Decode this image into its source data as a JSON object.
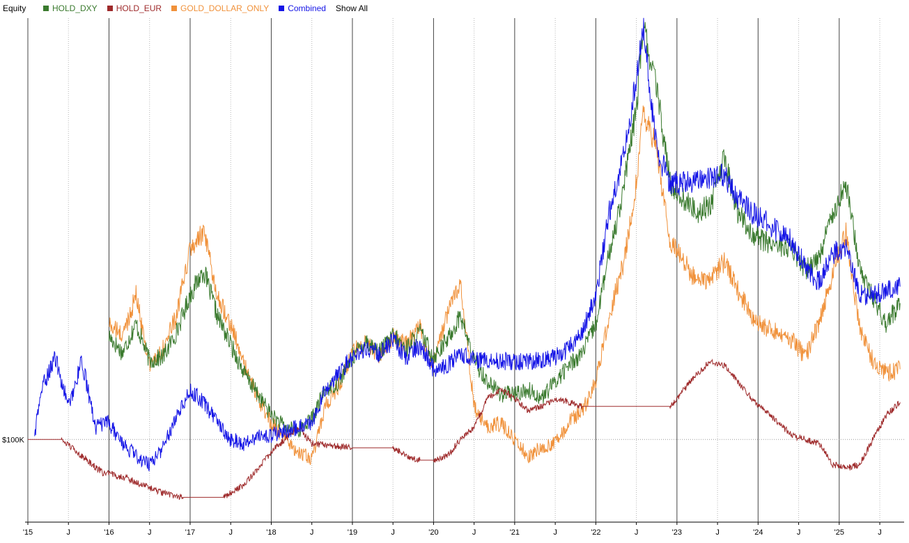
{
  "header": {
    "title": "Equity",
    "show_all": "Show All"
  },
  "chart_data": {
    "type": "line",
    "ylabel_tick": "$100K",
    "y_reference": 100000,
    "grid": "vertical lines at each year start, dotted lines at mid-year, dotted horizontal reference at $100K",
    "legend_position": "top-left",
    "x_tick_labels": [
      "'15",
      "J",
      "'16",
      "J",
      "'17",
      "J",
      "'18",
      "J",
      "'19",
      "J",
      "'20",
      "J",
      "'21",
      "J",
      "'22",
      "J",
      "'23",
      "J",
      "'24",
      "J",
      "'25",
      "J"
    ],
    "x_tick_dates": [
      "2015-01",
      "2015-07",
      "2016-01",
      "2016-07",
      "2017-01",
      "2017-07",
      "2018-01",
      "2018-07",
      "2019-01",
      "2019-07",
      "2020-01",
      "2020-07",
      "2021-01",
      "2021-07",
      "2022-01",
      "2022-07",
      "2023-01",
      "2023-07",
      "2024-01",
      "2024-07",
      "2025-01",
      "2025-07"
    ],
    "x_range": [
      "2015-01",
      "2025-10"
    ],
    "series": [
      {
        "name": "HOLD_DXY",
        "color": "#3a7a2e",
        "start": "2016-01",
        "x": [
          "2016-01",
          "2016-03",
          "2016-05",
          "2016-07",
          "2016-09",
          "2016-11",
          "2017-01",
          "2017-03",
          "2017-05",
          "2017-07",
          "2017-09",
          "2017-11",
          "2018-01",
          "2018-03",
          "2018-05",
          "2018-07",
          "2018-09",
          "2018-11",
          "2019-01",
          "2019-03",
          "2019-05",
          "2019-07",
          "2019-09",
          "2019-11",
          "2020-01",
          "2020-03",
          "2020-05",
          "2020-07",
          "2020-09",
          "2020-11",
          "2021-01",
          "2021-03",
          "2021-05",
          "2021-07",
          "2021-09",
          "2021-11",
          "2022-01",
          "2022-03",
          "2022-05",
          "2022-07",
          "2022-08",
          "2022-10",
          "2022-12",
          "2023-02",
          "2023-04",
          "2023-06",
          "2023-08",
          "2023-10",
          "2023-12",
          "2024-02",
          "2024-04",
          "2024-06",
          "2024-08",
          "2024-10",
          "2024-12",
          "2025-02",
          "2025-04",
          "2025-06",
          "2025-08",
          "2025-10"
        ],
        "y": [
          125,
          121,
          128,
          119,
          120,
          126,
          135,
          141,
          130,
          123,
          116,
          111,
          106,
          103,
          102,
          105,
          112,
          114,
          120,
          124,
          121,
          125,
          122,
          126,
          120,
          124,
          130,
          119,
          114,
          111,
          111,
          112,
          110,
          114,
          118,
          121,
          128,
          145,
          160,
          180,
          200,
          185,
          162,
          158,
          155,
          157,
          168,
          155,
          150,
          148,
          147,
          146,
          141,
          144,
          155,
          162,
          142,
          134,
          128,
          133
        ]
      },
      {
        "name": "HOLD_EUR",
        "color": "#9e2a2b",
        "start": "2015-01",
        "x": [
          "2015-01",
          "2015-06",
          "2015-09",
          "2015-12",
          "2016-03",
          "2016-06",
          "2016-09",
          "2016-12",
          "2017-03",
          "2017-06",
          "2017-09",
          "2017-11",
          "2018-01",
          "2018-03",
          "2018-05",
          "2018-07",
          "2019-01",
          "2019-07",
          "2019-09",
          "2019-11",
          "2020-01",
          "2020-03",
          "2020-05",
          "2020-07",
          "2020-09",
          "2020-11",
          "2021-01",
          "2021-03",
          "2021-05",
          "2021-07",
          "2021-09",
          "2021-11",
          "2022-01",
          "2022-06",
          "2022-12",
          "2023-02",
          "2023-04",
          "2023-06",
          "2023-08",
          "2023-10",
          "2023-12",
          "2024-02",
          "2024-04",
          "2024-06",
          "2024-08",
          "2024-10",
          "2024-12",
          "2025-02",
          "2025-04",
          "2025-06",
          "2025-08",
          "2025-10"
        ],
        "y": [
          100,
          100,
          96,
          92,
          91,
          89,
          87,
          86,
          86,
          86,
          89,
          93,
          97,
          100,
          103,
          99,
          98,
          98,
          96,
          95,
          95,
          96,
          100,
          103,
          110,
          112,
          110,
          107,
          108,
          110,
          109,
          108,
          108,
          108,
          108,
          112,
          116,
          119,
          118,
          114,
          110,
          107,
          104,
          101,
          100,
          99,
          94,
          93,
          94,
          100,
          106,
          109
        ]
      },
      {
        "name": "GOLD_DOLLAR_ONLY",
        "color": "#f0913a",
        "start": "2016-01",
        "x": [
          "2016-01",
          "2016-03",
          "2016-05",
          "2016-07",
          "2016-09",
          "2016-11",
          "2017-01",
          "2017-03",
          "2017-05",
          "2017-07",
          "2017-09",
          "2017-11",
          "2018-01",
          "2018-03",
          "2018-05",
          "2018-07",
          "2018-09",
          "2018-11",
          "2019-01",
          "2019-03",
          "2019-05",
          "2019-07",
          "2019-09",
          "2019-11",
          "2020-01",
          "2020-03",
          "2020-05",
          "2020-07",
          "2020-09",
          "2020-11",
          "2021-01",
          "2021-03",
          "2021-05",
          "2021-07",
          "2021-09",
          "2021-11",
          "2022-01",
          "2022-03",
          "2022-05",
          "2022-07",
          "2022-08",
          "2022-10",
          "2022-12",
          "2023-02",
          "2023-04",
          "2023-06",
          "2023-08",
          "2023-10",
          "2023-12",
          "2024-02",
          "2024-04",
          "2024-06",
          "2024-08",
          "2024-10",
          "2024-12",
          "2025-02",
          "2025-04",
          "2025-06",
          "2025-08",
          "2025-10"
        ],
        "y": [
          128,
          125,
          135,
          118,
          122,
          130,
          146,
          150,
          135,
          128,
          118,
          110,
          104,
          100,
          97,
          95,
          108,
          113,
          121,
          124,
          120,
          125,
          123,
          127,
          118,
          130,
          138,
          108,
          103,
          104,
          100,
          96,
          98,
          99,
          104,
          107,
          114,
          130,
          142,
          162,
          180,
          170,
          148,
          143,
          138,
          139,
          143,
          136,
          130,
          127,
          126,
          124,
          120,
          128,
          140,
          150,
          127,
          119,
          116,
          117
        ]
      },
      {
        "name": "Combined",
        "color": "#1414e6",
        "start": "2015-02",
        "x": [
          "2015-02",
          "2015-03",
          "2015-05",
          "2015-07",
          "2015-09",
          "2015-11",
          "2016-01",
          "2016-03",
          "2016-05",
          "2016-07",
          "2016-09",
          "2016-11",
          "2017-01",
          "2017-03",
          "2017-05",
          "2017-07",
          "2017-09",
          "2017-11",
          "2018-01",
          "2018-03",
          "2018-05",
          "2018-07",
          "2018-09",
          "2018-11",
          "2019-01",
          "2019-03",
          "2019-05",
          "2019-07",
          "2019-09",
          "2019-11",
          "2020-01",
          "2020-03",
          "2020-05",
          "2020-07",
          "2020-09",
          "2020-11",
          "2021-01",
          "2021-03",
          "2021-05",
          "2021-07",
          "2021-09",
          "2021-11",
          "2022-01",
          "2022-03",
          "2022-05",
          "2022-07",
          "2022-08",
          "2022-10",
          "2022-12",
          "2023-02",
          "2023-04",
          "2023-06",
          "2023-08",
          "2023-10",
          "2023-12",
          "2024-02",
          "2024-04",
          "2024-06",
          "2024-08",
          "2024-10",
          "2024-12",
          "2025-02",
          "2025-04",
          "2025-06",
          "2025-08",
          "2025-10"
        ],
        "y": [
          101,
          112,
          120,
          108,
          119,
          103,
          104,
          99,
          96,
          94,
          98,
          106,
          112,
          109,
          104,
          100,
          99,
          101,
          101,
          102,
          103,
          104,
          112,
          116,
          120,
          122,
          121,
          124,
          120,
          123,
          117,
          118,
          121,
          119,
          119,
          119,
          119,
          119,
          119,
          120,
          122,
          126,
          135,
          155,
          168,
          187,
          200,
          170,
          162,
          162,
          163,
          163,
          164,
          158,
          155,
          153,
          150,
          148,
          142,
          138,
          145,
          147,
          135,
          135,
          136,
          137
        ]
      }
    ]
  }
}
